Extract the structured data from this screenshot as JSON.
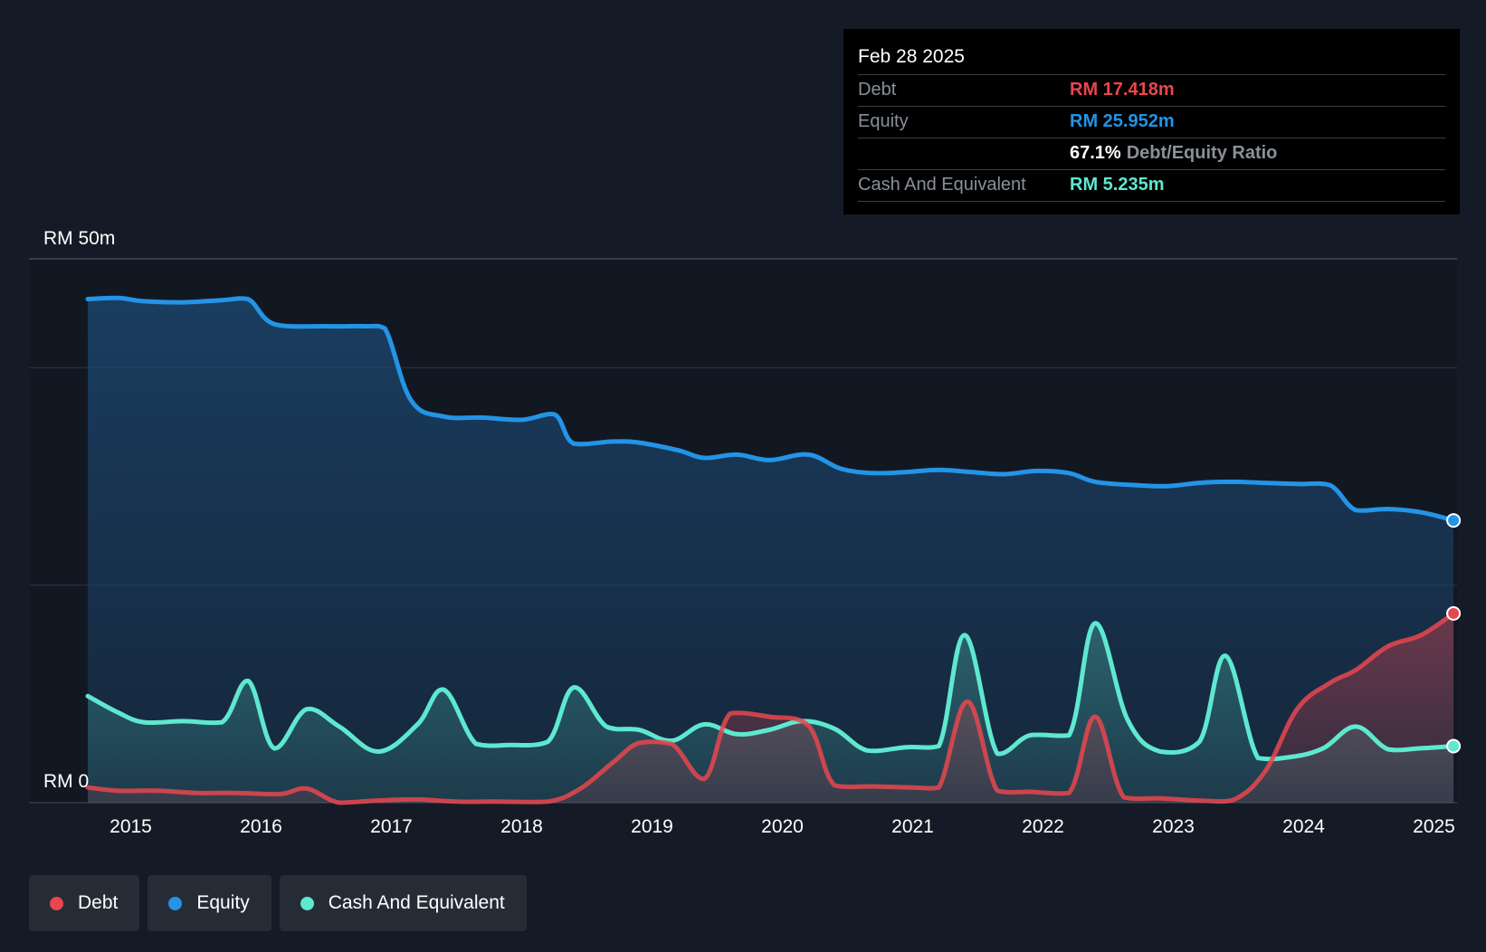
{
  "colors": {
    "debt": "#e8474f",
    "equity": "#2394e6",
    "cash": "#5ee8d0",
    "background": "#151b26"
  },
  "tooltip": {
    "date": "Feb 28 2025",
    "rows": [
      {
        "label": "Debt",
        "value": "RM 17.418m",
        "color": "#e8474f"
      },
      {
        "label": "Equity",
        "value": "RM 25.952m",
        "color": "#2394e6"
      },
      {
        "label": "",
        "ratio_value": "67.1%",
        "ratio_text": "Debt/Equity Ratio"
      },
      {
        "label": "Cash And Equivalent",
        "value": "RM 5.235m",
        "color": "#5ee8d0"
      }
    ]
  },
  "legend": [
    {
      "label": "Debt",
      "color": "#e8474f"
    },
    {
      "label": "Equity",
      "color": "#2394e6"
    },
    {
      "label": "Cash And Equivalent",
      "color": "#5ee8d0"
    }
  ],
  "chart_data": {
    "type": "area",
    "x_ticks": [
      "2015",
      "2016",
      "2017",
      "2018",
      "2019",
      "2020",
      "2021",
      "2022",
      "2023",
      "2024",
      "2025"
    ],
    "x_range": [
      2014.3,
      2025.15
    ],
    "ylim": [
      0,
      50
    ],
    "y_tick_labels": [
      {
        "value": 50,
        "label": "RM 50m"
      },
      {
        "value": 0,
        "label": "RM 0"
      }
    ],
    "grid": true,
    "series": [
      {
        "name": "Equity",
        "color": "#2394e6",
        "points": [
          [
            2014.67,
            46.3
          ],
          [
            2014.9,
            46.4
          ],
          [
            2015.1,
            46.1
          ],
          [
            2015.4,
            46.0
          ],
          [
            2015.7,
            46.2
          ],
          [
            2015.9,
            46.3
          ],
          [
            2016.1,
            44.0
          ],
          [
            2016.5,
            43.8
          ],
          [
            2016.8,
            43.8
          ],
          [
            2016.95,
            43.6
          ],
          [
            2017.15,
            37.0
          ],
          [
            2017.4,
            35.5
          ],
          [
            2017.7,
            35.4
          ],
          [
            2018.0,
            35.2
          ],
          [
            2018.25,
            35.7
          ],
          [
            2018.4,
            33.0
          ],
          [
            2018.7,
            33.2
          ],
          [
            2018.9,
            33.1
          ],
          [
            2019.2,
            32.4
          ],
          [
            2019.4,
            31.7
          ],
          [
            2019.65,
            32.0
          ],
          [
            2019.9,
            31.5
          ],
          [
            2020.2,
            32.0
          ],
          [
            2020.45,
            30.7
          ],
          [
            2020.7,
            30.3
          ],
          [
            2020.95,
            30.4
          ],
          [
            2021.2,
            30.6
          ],
          [
            2021.45,
            30.4
          ],
          [
            2021.7,
            30.2
          ],
          [
            2021.95,
            30.5
          ],
          [
            2022.2,
            30.3
          ],
          [
            2022.4,
            29.5
          ],
          [
            2022.7,
            29.2
          ],
          [
            2022.95,
            29.1
          ],
          [
            2023.2,
            29.4
          ],
          [
            2023.45,
            29.5
          ],
          [
            2023.7,
            29.4
          ],
          [
            2023.95,
            29.3
          ],
          [
            2024.2,
            29.2
          ],
          [
            2024.4,
            26.9
          ],
          [
            2024.65,
            27.0
          ],
          [
            2024.9,
            26.7
          ],
          [
            2025.15,
            25.95
          ]
        ]
      },
      {
        "name": "Cash And Equivalent",
        "color": "#5ee8d0",
        "points": [
          [
            2014.67,
            9.8
          ],
          [
            2014.9,
            8.3
          ],
          [
            2015.1,
            7.4
          ],
          [
            2015.4,
            7.5
          ],
          [
            2015.7,
            7.4
          ],
          [
            2015.9,
            11.2
          ],
          [
            2016.1,
            5.0
          ],
          [
            2016.35,
            8.6
          ],
          [
            2016.6,
            7.0
          ],
          [
            2016.9,
            4.7
          ],
          [
            2017.2,
            7.2
          ],
          [
            2017.4,
            10.4
          ],
          [
            2017.65,
            5.4
          ],
          [
            2017.9,
            5.3
          ],
          [
            2018.2,
            5.6
          ],
          [
            2018.4,
            10.6
          ],
          [
            2018.65,
            7.0
          ],
          [
            2018.9,
            6.7
          ],
          [
            2019.15,
            5.7
          ],
          [
            2019.4,
            7.2
          ],
          [
            2019.65,
            6.3
          ],
          [
            2019.9,
            6.7
          ],
          [
            2020.15,
            7.5
          ],
          [
            2020.4,
            6.8
          ],
          [
            2020.65,
            4.8
          ],
          [
            2020.95,
            5.1
          ],
          [
            2021.2,
            5.2
          ],
          [
            2021.4,
            15.4
          ],
          [
            2021.65,
            4.5
          ],
          [
            2021.9,
            6.2
          ],
          [
            2022.2,
            6.2
          ],
          [
            2022.4,
            16.5
          ],
          [
            2022.65,
            7.6
          ],
          [
            2022.9,
            4.7
          ],
          [
            2023.2,
            5.6
          ],
          [
            2023.4,
            13.5
          ],
          [
            2023.65,
            4.1
          ],
          [
            2023.9,
            4.2
          ],
          [
            2024.15,
            5.0
          ],
          [
            2024.4,
            7.0
          ],
          [
            2024.65,
            4.9
          ],
          [
            2024.9,
            5.0
          ],
          [
            2025.15,
            5.2
          ]
        ]
      },
      {
        "name": "Debt",
        "color": "#e8474f",
        "points": [
          [
            2014.67,
            1.4
          ],
          [
            2014.9,
            1.1
          ],
          [
            2015.2,
            1.1
          ],
          [
            2015.5,
            0.9
          ],
          [
            2015.8,
            0.9
          ],
          [
            2016.15,
            0.8
          ],
          [
            2016.35,
            1.3
          ],
          [
            2016.6,
            0.0
          ],
          [
            2016.9,
            0.2
          ],
          [
            2017.2,
            0.3
          ],
          [
            2017.5,
            0.1
          ],
          [
            2017.8,
            0.1
          ],
          [
            2018.2,
            0.1
          ],
          [
            2018.45,
            1.3
          ],
          [
            2018.7,
            3.7
          ],
          [
            2018.9,
            5.5
          ],
          [
            2019.15,
            5.4
          ],
          [
            2019.4,
            2.2
          ],
          [
            2019.6,
            8.2
          ],
          [
            2019.9,
            7.9
          ],
          [
            2020.2,
            7.1
          ],
          [
            2020.4,
            1.6
          ],
          [
            2020.7,
            1.5
          ],
          [
            2021.0,
            1.4
          ],
          [
            2021.2,
            1.4
          ],
          [
            2021.42,
            9.3
          ],
          [
            2021.65,
            1.1
          ],
          [
            2021.9,
            1.0
          ],
          [
            2022.2,
            0.9
          ],
          [
            2022.4,
            7.9
          ],
          [
            2022.62,
            0.5
          ],
          [
            2022.9,
            0.4
          ],
          [
            2023.2,
            0.2
          ],
          [
            2023.45,
            0.2
          ],
          [
            2023.7,
            2.8
          ],
          [
            2023.95,
            8.6
          ],
          [
            2024.2,
            11.0
          ],
          [
            2024.4,
            12.2
          ],
          [
            2024.65,
            14.4
          ],
          [
            2024.9,
            15.4
          ],
          [
            2025.15,
            17.4
          ]
        ]
      }
    ]
  }
}
